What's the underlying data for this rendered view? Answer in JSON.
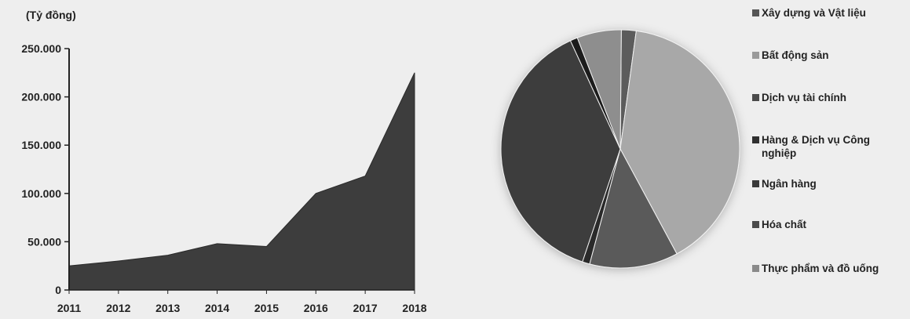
{
  "chart_data": [
    {
      "type": "area",
      "unit_label": "(Tỷ đồng)",
      "x": [
        "2011",
        "2012",
        "2013",
        "2014",
        "2015",
        "2016",
        "2017",
        "2018"
      ],
      "values": [
        25000,
        30000,
        36000,
        48000,
        45000,
        100000,
        118000,
        225000
      ],
      "ylim": [
        0,
        250000
      ],
      "yticks": [
        0,
        50000,
        100000,
        150000,
        200000,
        250000
      ],
      "ytick_labels": [
        "0",
        "50.000",
        "100.000",
        "150.000",
        "200.000",
        "250.000"
      ],
      "grid": false,
      "color": "#3d3d3d"
    },
    {
      "type": "pie",
      "legend_position": "right",
      "categories": [
        "Xây dựng và Vật liệu",
        "Bất động sản",
        "Dịch vụ tài chính",
        "Hàng & Dịch vụ Công nghiệp",
        "Ngân hàng",
        "Hóa chất",
        "Thực phẩm và đồ uống"
      ],
      "legend_colors": [
        "#555555",
        "#9a9a9a",
        "#4a4a4a",
        "#2f2f2f",
        "#3a3a3a",
        "#4a4a4a",
        "#8a8a8a"
      ],
      "slices": [
        {
          "category": "Xây dựng và Vật liệu",
          "percent": 2.0,
          "color": "#5c5c5c"
        },
        {
          "category": "Bất động sản",
          "percent": 40.0,
          "color": "#a8a8a8"
        },
        {
          "category": "Dịch vụ tài chính",
          "percent": 12.0,
          "color": "#5a5a5a"
        },
        {
          "category": "Hàng & Dịch vụ Công nghiệp",
          "percent": 1.0,
          "color": "#2a2a2a"
        },
        {
          "category": "Ngân hàng",
          "percent": 38.0,
          "color": "#3e3e3e"
        },
        {
          "category": "Hóa chất",
          "percent": 1.0,
          "color": "#1f1f1f"
        },
        {
          "category": "Thực phẩm và đồ uống",
          "percent": 6.0,
          "color": "#8e8e8e"
        }
      ]
    }
  ]
}
